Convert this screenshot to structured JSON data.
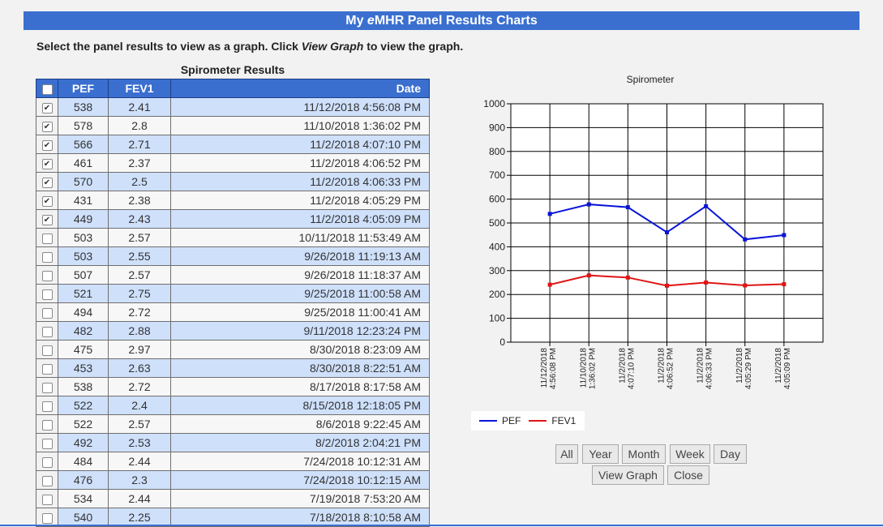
{
  "header": {
    "title_prefix": "My ",
    "title_italic": "e",
    "title_suffix": "MHR Panel Results Charts"
  },
  "instructions": {
    "part1": "Select the panel results to view as a graph. Click ",
    "link_text": "View Graph",
    "part2": " to view the graph."
  },
  "table": {
    "title": "Spirometer Results",
    "headers": {
      "pef": "PEF",
      "fev1": "FEV1",
      "date": "Date"
    },
    "rows": [
      {
        "checked": true,
        "pef": "538",
        "fev1": "2.41",
        "date": "11/12/2018 4:56:08 PM"
      },
      {
        "checked": true,
        "pef": "578",
        "fev1": "2.8",
        "date": "11/10/2018 1:36:02 PM"
      },
      {
        "checked": true,
        "pef": "566",
        "fev1": "2.71",
        "date": "11/2/2018 4:07:10 PM"
      },
      {
        "checked": true,
        "pef": "461",
        "fev1": "2.37",
        "date": "11/2/2018 4:06:52 PM"
      },
      {
        "checked": true,
        "pef": "570",
        "fev1": "2.5",
        "date": "11/2/2018 4:06:33 PM"
      },
      {
        "checked": true,
        "pef": "431",
        "fev1": "2.38",
        "date": "11/2/2018 4:05:29 PM"
      },
      {
        "checked": true,
        "pef": "449",
        "fev1": "2.43",
        "date": "11/2/2018 4:05:09 PM"
      },
      {
        "checked": false,
        "pef": "503",
        "fev1": "2.57",
        "date": "10/11/2018 11:53:49 AM"
      },
      {
        "checked": false,
        "pef": "503",
        "fev1": "2.55",
        "date": "9/26/2018 11:19:13 AM"
      },
      {
        "checked": false,
        "pef": "507",
        "fev1": "2.57",
        "date": "9/26/2018 11:18:37 AM"
      },
      {
        "checked": false,
        "pef": "521",
        "fev1": "2.75",
        "date": "9/25/2018 11:00:58 AM"
      },
      {
        "checked": false,
        "pef": "494",
        "fev1": "2.72",
        "date": "9/25/2018 11:00:41 AM"
      },
      {
        "checked": false,
        "pef": "482",
        "fev1": "2.88",
        "date": "9/11/2018 12:23:24 PM"
      },
      {
        "checked": false,
        "pef": "475",
        "fev1": "2.97",
        "date": "8/30/2018 8:23:09 AM"
      },
      {
        "checked": false,
        "pef": "453",
        "fev1": "2.63",
        "date": "8/30/2018 8:22:51 AM"
      },
      {
        "checked": false,
        "pef": "538",
        "fev1": "2.72",
        "date": "8/17/2018 8:17:58 AM"
      },
      {
        "checked": false,
        "pef": "522",
        "fev1": "2.4",
        "date": "8/15/2018 12:18:05 PM"
      },
      {
        "checked": false,
        "pef": "522",
        "fev1": "2.57",
        "date": "8/6/2018 9:22:45 AM"
      },
      {
        "checked": false,
        "pef": "492",
        "fev1": "2.53",
        "date": "8/2/2018 2:04:21 PM"
      },
      {
        "checked": false,
        "pef": "484",
        "fev1": "2.44",
        "date": "7/24/2018 10:12:31 AM"
      },
      {
        "checked": false,
        "pef": "476",
        "fev1": "2.3",
        "date": "7/24/2018 10:12:15 AM"
      },
      {
        "checked": false,
        "pef": "534",
        "fev1": "2.44",
        "date": "7/19/2018 7:53:20 AM"
      },
      {
        "checked": false,
        "pef": "540",
        "fev1": "2.25",
        "date": "7/18/2018 8:10:58 AM"
      }
    ]
  },
  "chart_data": {
    "type": "line",
    "title": "Spirometer",
    "categories": [
      [
        "11/12/2018",
        "4:56:08 PM"
      ],
      [
        "11/10/2018",
        "1:36:02 PM"
      ],
      [
        "11/2/2018",
        "4:07:10 PM"
      ],
      [
        "11/2/2018",
        "4:06:52 PM"
      ],
      [
        "11/2/2018",
        "4:06:33 PM"
      ],
      [
        "11/2/2018",
        "4:05:29 PM"
      ],
      [
        "11/2/2018",
        "4:05:09 PM"
      ]
    ],
    "ylim": [
      0,
      1000
    ],
    "yticks": [
      0,
      100,
      200,
      300,
      400,
      500,
      600,
      700,
      800,
      900,
      1000
    ],
    "grid": true,
    "legend_position": "bottom-left",
    "series": [
      {
        "name": "PEF",
        "color": "#0b15d6",
        "values": [
          538,
          578,
          566,
          461,
          570,
          431,
          449
        ]
      },
      {
        "name": "FEV1",
        "color": "#e01515",
        "values": [
          241,
          280,
          271,
          237,
          250,
          238,
          243
        ]
      }
    ]
  },
  "buttons": {
    "all": "All",
    "year": "Year",
    "month": "Month",
    "week": "Week",
    "day": "Day",
    "view_graph": "View Graph",
    "close": "Close"
  }
}
